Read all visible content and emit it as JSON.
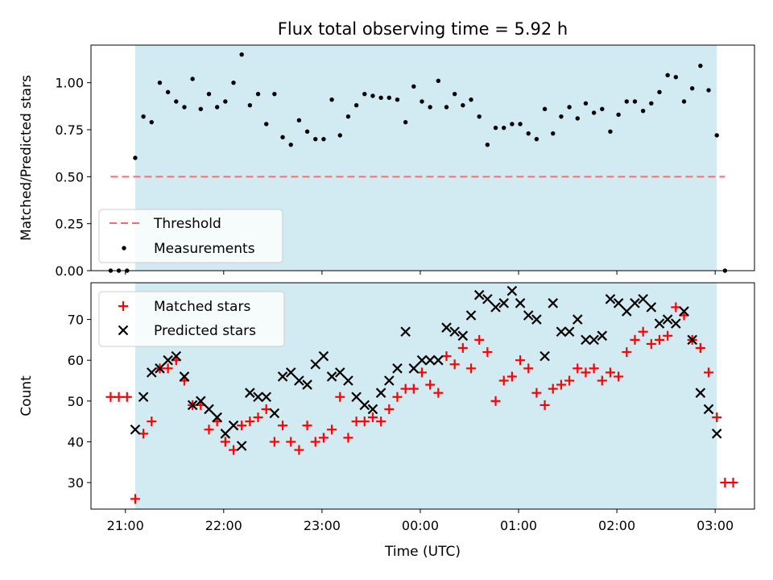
{
  "chart_data": {
    "title": "Flux total observing time = 5.92 h",
    "xlabel": "Time (UTC)",
    "x_tick_labels": [
      "21:00",
      "22:00",
      "23:00",
      "00:00",
      "01:00",
      "02:00",
      "03:00"
    ],
    "xlim": [
      "20:39",
      "03:24"
    ],
    "shaded_interval": [
      "21:06",
      "03:01"
    ],
    "colors": {
      "shade": "#add8e6",
      "threshold": "#ff6b6b",
      "measurements": "#000000",
      "matched": "#ff0000",
      "predicted": "#000000"
    },
    "panels": [
      {
        "type": "scatter",
        "ylabel": "Matched/Predicted stars",
        "ylim": [
          0,
          1.2
        ],
        "y_ticks": [
          0.0,
          0.25,
          0.5,
          0.75,
          1.0
        ],
        "y_tick_labels": [
          "0.00",
          "0.25",
          "0.50",
          "0.75",
          "1.00"
        ],
        "threshold": {
          "name": "Threshold",
          "value": 0.5,
          "x_range": [
            "20:51",
            "03:06"
          ]
        },
        "legend": {
          "position": "lower-left",
          "entries": [
            "Threshold",
            "Measurements"
          ]
        },
        "series": [
          {
            "name": "Measurements",
            "marker": "dot",
            "points": [
              [
                "20:51",
                0.0
              ],
              [
                "20:56",
                0.0
              ],
              [
                "21:01",
                0.0
              ],
              [
                "21:06",
                0.6
              ],
              [
                "21:11",
                0.82
              ],
              [
                "21:16",
                0.79
              ],
              [
                "21:21",
                1.0
              ],
              [
                "21:26",
                0.95
              ],
              [
                "21:31",
                0.9
              ],
              [
                "21:36",
                0.87
              ],
              [
                "21:41",
                1.02
              ],
              [
                "21:46",
                0.86
              ],
              [
                "21:51",
                0.94
              ],
              [
                "21:56",
                0.87
              ],
              [
                "22:01",
                0.9
              ],
              [
                "22:06",
                1.0
              ],
              [
                "22:11",
                1.15
              ],
              [
                "22:16",
                0.88
              ],
              [
                "22:21",
                0.94
              ],
              [
                "22:26",
                0.78
              ],
              [
                "22:31",
                0.94
              ],
              [
                "22:36",
                0.71
              ],
              [
                "22:41",
                0.67
              ],
              [
                "22:46",
                0.8
              ],
              [
                "22:51",
                0.74
              ],
              [
                "22:56",
                0.7
              ],
              [
                "23:01",
                0.7
              ],
              [
                "23:06",
                0.91
              ],
              [
                "23:11",
                0.72
              ],
              [
                "23:16",
                0.82
              ],
              [
                "23:21",
                0.88
              ],
              [
                "23:26",
                0.94
              ],
              [
                "23:31",
                0.93
              ],
              [
                "23:36",
                0.92
              ],
              [
                "23:41",
                0.92
              ],
              [
                "23:46",
                0.91
              ],
              [
                "23:51",
                0.79
              ],
              [
                "23:56",
                0.98
              ],
              [
                "00:01",
                0.9
              ],
              [
                "00:06",
                0.87
              ],
              [
                "00:11",
                1.01
              ],
              [
                "00:16",
                0.87
              ],
              [
                "00:21",
                0.94
              ],
              [
                "00:26",
                0.88
              ],
              [
                "00:31",
                0.91
              ],
              [
                "00:36",
                0.82
              ],
              [
                "00:41",
                0.67
              ],
              [
                "00:46",
                0.76
              ],
              [
                "00:51",
                0.76
              ],
              [
                "00:56",
                0.78
              ],
              [
                "01:01",
                0.78
              ],
              [
                "01:06",
                0.73
              ],
              [
                "01:11",
                0.7
              ],
              [
                "01:16",
                0.86
              ],
              [
                "01:21",
                0.73
              ],
              [
                "01:26",
                0.82
              ],
              [
                "01:31",
                0.87
              ],
              [
                "01:36",
                0.81
              ],
              [
                "01:41",
                0.89
              ],
              [
                "01:46",
                0.84
              ],
              [
                "01:51",
                0.86
              ],
              [
                "01:56",
                0.74
              ],
              [
                "02:01",
                0.83
              ],
              [
                "02:06",
                0.9
              ],
              [
                "02:11",
                0.9
              ],
              [
                "02:16",
                0.85
              ],
              [
                "02:21",
                0.89
              ],
              [
                "02:26",
                0.95
              ],
              [
                "02:31",
                1.04
              ],
              [
                "02:36",
                1.03
              ],
              [
                "02:41",
                0.9
              ],
              [
                "02:46",
                0.97
              ],
              [
                "02:51",
                1.09
              ],
              [
                "02:56",
                0.96
              ],
              [
                "03:01",
                0.72
              ],
              [
                "03:06",
                0.0
              ]
            ]
          }
        ]
      },
      {
        "type": "scatter",
        "ylabel": "Count",
        "ylim": [
          23.5,
          79
        ],
        "y_ticks": [
          30,
          40,
          50,
          60,
          70
        ],
        "y_tick_labels": [
          "30",
          "40",
          "50",
          "60",
          "70"
        ],
        "legend": {
          "position": "upper-left",
          "entries": [
            "Matched stars",
            "Predicted stars"
          ]
        },
        "series": [
          {
            "name": "Matched stars",
            "marker": "plus",
            "points": [
              [
                "20:51",
                51
              ],
              [
                "20:56",
                51
              ],
              [
                "21:01",
                51
              ],
              [
                "21:06",
                26
              ],
              [
                "21:11",
                42
              ],
              [
                "21:16",
                45
              ],
              [
                "21:21",
                58
              ],
              [
                "21:26",
                58
              ],
              [
                "21:31",
                60
              ],
              [
                "21:36",
                55
              ],
              [
                "21:41",
                49
              ],
              [
                "21:46",
                49
              ],
              [
                "21:51",
                43
              ],
              [
                "21:56",
                45
              ],
              [
                "22:01",
                40
              ],
              [
                "22:06",
                38
              ],
              [
                "22:11",
                44
              ],
              [
                "22:16",
                45
              ],
              [
                "22:21",
                46
              ],
              [
                "22:26",
                48
              ],
              [
                "22:31",
                40
              ],
              [
                "22:36",
                44
              ],
              [
                "22:41",
                40
              ],
              [
                "22:46",
                38
              ],
              [
                "22:51",
                44
              ],
              [
                "22:56",
                40
              ],
              [
                "23:01",
                41
              ],
              [
                "23:06",
                43
              ],
              [
                "23:11",
                51
              ],
              [
                "23:16",
                41
              ],
              [
                "23:21",
                45
              ],
              [
                "23:26",
                45
              ],
              [
                "23:31",
                46
              ],
              [
                "23:36",
                45
              ],
              [
                "23:41",
                48
              ],
              [
                "23:46",
                51
              ],
              [
                "23:51",
                53
              ],
              [
                "23:56",
                53
              ],
              [
                "00:01",
                57
              ],
              [
                "00:06",
                54
              ],
              [
                "00:11",
                52
              ],
              [
                "00:16",
                61
              ],
              [
                "00:21",
                59
              ],
              [
                "00:26",
                63
              ],
              [
                "00:31",
                58
              ],
              [
                "00:36",
                65
              ],
              [
                "00:41",
                62
              ],
              [
                "00:46",
                50
              ],
              [
                "00:51",
                55
              ],
              [
                "00:56",
                56
              ],
              [
                "01:01",
                60
              ],
              [
                "01:06",
                58
              ],
              [
                "01:11",
                52
              ],
              [
                "01:16",
                49
              ],
              [
                "01:21",
                53
              ],
              [
                "01:26",
                54
              ],
              [
                "01:31",
                55
              ],
              [
                "01:36",
                58
              ],
              [
                "01:41",
                57
              ],
              [
                "01:46",
                58
              ],
              [
                "01:51",
                55
              ],
              [
                "01:56",
                57
              ],
              [
                "02:01",
                56
              ],
              [
                "02:06",
                62
              ],
              [
                "02:11",
                65
              ],
              [
                "02:16",
                67
              ],
              [
                "02:21",
                64
              ],
              [
                "02:26",
                65
              ],
              [
                "02:31",
                66
              ],
              [
                "02:36",
                73
              ],
              [
                "02:41",
                71
              ],
              [
                "02:46",
                65
              ],
              [
                "02:51",
                63
              ],
              [
                "02:56",
                57
              ],
              [
                "03:01",
                46
              ],
              [
                "03:06",
                30
              ],
              [
                "03:11",
                30
              ]
            ]
          },
          {
            "name": "Predicted stars",
            "marker": "x",
            "points": [
              [
                "21:06",
                43
              ],
              [
                "21:11",
                51
              ],
              [
                "21:16",
                57
              ],
              [
                "21:21",
                58
              ],
              [
                "21:26",
                60
              ],
              [
                "21:31",
                61
              ],
              [
                "21:36",
                56
              ],
              [
                "21:41",
                49
              ],
              [
                "21:46",
                50
              ],
              [
                "21:51",
                48
              ],
              [
                "21:56",
                46
              ],
              [
                "22:01",
                42
              ],
              [
                "22:06",
                44
              ],
              [
                "22:11",
                39
              ],
              [
                "22:16",
                52
              ],
              [
                "22:21",
                51
              ],
              [
                "22:26",
                51
              ],
              [
                "22:31",
                47
              ],
              [
                "22:36",
                56
              ],
              [
                "22:41",
                57
              ],
              [
                "22:46",
                55
              ],
              [
                "22:51",
                54
              ],
              [
                "22:56",
                59
              ],
              [
                "23:01",
                61
              ],
              [
                "23:06",
                56
              ],
              [
                "23:11",
                57
              ],
              [
                "23:16",
                55
              ],
              [
                "23:21",
                51
              ],
              [
                "23:26",
                49
              ],
              [
                "23:31",
                48
              ],
              [
                "23:36",
                52
              ],
              [
                "23:41",
                55
              ],
              [
                "23:46",
                58
              ],
              [
                "23:51",
                67
              ],
              [
                "23:56",
                58
              ],
              [
                "00:01",
                60
              ],
              [
                "00:06",
                60
              ],
              [
                "00:11",
                60
              ],
              [
                "00:16",
                68
              ],
              [
                "00:21",
                67
              ],
              [
                "00:26",
                66
              ],
              [
                "00:31",
                71
              ],
              [
                "00:36",
                76
              ],
              [
                "00:41",
                75
              ],
              [
                "00:46",
                73
              ],
              [
                "00:51",
                74
              ],
              [
                "00:56",
                77
              ],
              [
                "01:01",
                74
              ],
              [
                "01:06",
                71
              ],
              [
                "01:11",
                70
              ],
              [
                "01:16",
                61
              ],
              [
                "01:21",
                74
              ],
              [
                "01:26",
                67
              ],
              [
                "01:31",
                67
              ],
              [
                "01:36",
                70
              ],
              [
                "01:41",
                65
              ],
              [
                "01:46",
                65
              ],
              [
                "01:51",
                66
              ],
              [
                "01:56",
                75
              ],
              [
                "02:01",
                74
              ],
              [
                "02:06",
                72
              ],
              [
                "02:11",
                74
              ],
              [
                "02:16",
                75
              ],
              [
                "02:21",
                73
              ],
              [
                "02:26",
                69
              ],
              [
                "02:31",
                70
              ],
              [
                "02:36",
                69
              ],
              [
                "02:41",
                72
              ],
              [
                "02:46",
                65
              ],
              [
                "02:51",
                52
              ],
              [
                "02:56",
                48
              ],
              [
                "03:01",
                42
              ]
            ]
          }
        ]
      }
    ]
  }
}
